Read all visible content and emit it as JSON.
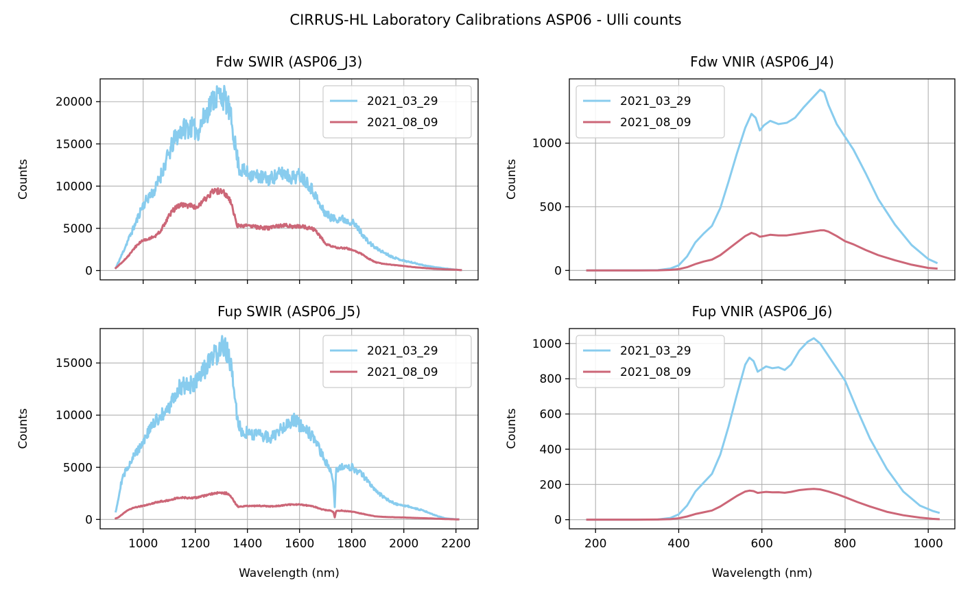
{
  "figure": {
    "title": "CIRRUS-HL Laboratory Calibrations ASP06 - Ulli counts",
    "background": "#ffffff"
  },
  "chart_data": [
    {
      "type": "line",
      "title": "Fdw SWIR (ASP06_J3)",
      "xlabel": "",
      "ylabel": "Counts",
      "xlim": [
        835,
        2285
      ],
      "ylim": [
        -1100,
        22700
      ],
      "xticks": [
        1000,
        1200,
        1400,
        1600,
        1800,
        2000,
        2200
      ],
      "xtick_labels_shown": false,
      "yticks": [
        0,
        5000,
        10000,
        15000,
        20000
      ],
      "grid": true,
      "legend": "top-right",
      "noise": {
        "seed": 11,
        "amp": 0.075
      },
      "series": [
        {
          "name": "2021_03_29",
          "color": "#88ccee",
          "x": [
            895,
            920,
            945,
            970,
            995,
            1020,
            1045,
            1070,
            1095,
            1120,
            1150,
            1180,
            1210,
            1240,
            1265,
            1290,
            1310,
            1325,
            1340,
            1350,
            1360,
            1370,
            1390,
            1420,
            1450,
            1480,
            1510,
            1540,
            1570,
            1600,
            1630,
            1660,
            1680,
            1700,
            1720,
            1740,
            1760,
            1780,
            1800,
            1830,
            1860,
            1890,
            1920,
            1950,
            1980,
            2010,
            2040,
            2080,
            2120,
            2160,
            2200,
            2220
          ],
          "y": [
            300,
            2000,
            3800,
            5500,
            7500,
            8700,
            9500,
            11500,
            13500,
            15500,
            16800,
            17000,
            16500,
            18500,
            20200,
            20800,
            20500,
            19500,
            17500,
            15500,
            13500,
            12000,
            11700,
            11300,
            11100,
            10800,
            11200,
            11600,
            11000,
            11300,
            10500,
            9000,
            7500,
            6800,
            6300,
            6100,
            6200,
            5900,
            5800,
            4800,
            3500,
            2700,
            2200,
            1700,
            1350,
            1100,
            900,
            600,
            400,
            250,
            100,
            50
          ]
        },
        {
          "name": "2021_08_09",
          "color": "#cc6677",
          "x": [
            895,
            920,
            945,
            970,
            995,
            1020,
            1045,
            1070,
            1095,
            1120,
            1150,
            1180,
            1210,
            1240,
            1265,
            1290,
            1310,
            1325,
            1340,
            1350,
            1360,
            1370,
            1390,
            1420,
            1450,
            1480,
            1510,
            1540,
            1570,
            1600,
            1630,
            1660,
            1680,
            1700,
            1720,
            1740,
            1760,
            1780,
            1800,
            1830,
            1860,
            1890,
            1920,
            1950,
            1980,
            2010,
            2040,
            2080,
            2120,
            2160,
            2200,
            2220
          ],
          "y": [
            300,
            1000,
            1800,
            2800,
            3500,
            3800,
            4000,
            4800,
            6300,
            7300,
            7800,
            7700,
            7500,
            8500,
            9300,
            9400,
            9200,
            8800,
            7800,
            6500,
            5400,
            5200,
            5300,
            5200,
            5100,
            5000,
            5200,
            5400,
            5200,
            5300,
            5100,
            4800,
            4000,
            3200,
            2900,
            2750,
            2700,
            2650,
            2500,
            2100,
            1500,
            1000,
            800,
            700,
            600,
            500,
            400,
            300,
            200,
            150,
            100,
            50
          ]
        }
      ]
    },
    {
      "type": "line",
      "title": "Fdw VNIR (ASP06_J4)",
      "xlabel": "",
      "ylabel": "Counts",
      "xlim": [
        137,
        1064
      ],
      "ylim": [
        -74,
        1505
      ],
      "xticks": [
        200,
        400,
        600,
        800,
        1000
      ],
      "xtick_labels_shown": false,
      "yticks": [
        0,
        500,
        1000
      ],
      "grid": true,
      "legend": "top-left",
      "noise": null,
      "series": [
        {
          "name": "2021_03_29",
          "color": "#88ccee",
          "x": [
            180,
            250,
            300,
            350,
            380,
            400,
            420,
            440,
            460,
            480,
            500,
            520,
            540,
            560,
            575,
            585,
            595,
            605,
            620,
            640,
            660,
            680,
            700,
            720,
            740,
            750,
            760,
            780,
            800,
            820,
            850,
            880,
            920,
            960,
            1000,
            1020
          ],
          "y": [
            0,
            0,
            0,
            2,
            15,
            40,
            110,
            220,
            290,
            350,
            490,
            700,
            920,
            1120,
            1230,
            1200,
            1100,
            1140,
            1175,
            1150,
            1160,
            1200,
            1280,
            1350,
            1420,
            1400,
            1300,
            1150,
            1050,
            950,
            760,
            560,
            360,
            200,
            90,
            60
          ]
        },
        {
          "name": "2021_08_09",
          "color": "#cc6677",
          "x": [
            180,
            250,
            300,
            350,
            380,
            400,
            420,
            440,
            460,
            480,
            500,
            520,
            540,
            560,
            575,
            585,
            595,
            605,
            620,
            640,
            660,
            680,
            700,
            720,
            740,
            750,
            760,
            780,
            800,
            820,
            850,
            880,
            920,
            960,
            1000,
            1020
          ],
          "y": [
            0,
            0,
            0,
            1,
            4,
            10,
            25,
            50,
            70,
            85,
            120,
            170,
            220,
            270,
            295,
            285,
            265,
            270,
            280,
            275,
            275,
            285,
            295,
            305,
            315,
            315,
            305,
            270,
            230,
            205,
            160,
            120,
            80,
            45,
            20,
            15
          ]
        }
      ]
    },
    {
      "type": "line",
      "title": "Fup SWIR (ASP06_J5)",
      "xlabel": "Wavelength (nm)",
      "ylabel": "Counts",
      "xlim": [
        835,
        2285
      ],
      "ylim": [
        -900,
        18300
      ],
      "xticks": [
        1000,
        1200,
        1400,
        1600,
        1800,
        2000,
        2200
      ],
      "xtick_labels_shown": true,
      "yticks": [
        0,
        5000,
        10000,
        15000
      ],
      "grid": true,
      "legend": "top-right",
      "noise": {
        "seed": 29,
        "amp": 0.07
      },
      "series": [
        {
          "name": "2021_03_29",
          "color": "#88ccee",
          "x": [
            895,
            905,
            915,
            930,
            950,
            975,
            1000,
            1030,
            1060,
            1090,
            1120,
            1150,
            1180,
            1210,
            1240,
            1270,
            1300,
            1320,
            1335,
            1345,
            1355,
            1365,
            1380,
            1400,
            1430,
            1460,
            1490,
            1520,
            1550,
            1580,
            1610,
            1640,
            1660,
            1680,
            1700,
            1720,
            1730,
            1735,
            1740,
            1760,
            1780,
            1800,
            1830,
            1860,
            1890,
            1920,
            1950,
            1980,
            2010,
            2040,
            2080,
            2120,
            2160,
            2200,
            2210
          ],
          "y": [
            800,
            2000,
            3500,
            4500,
            5500,
            6500,
            7500,
            8800,
            9800,
            10200,
            11800,
            13000,
            12800,
            13200,
            14500,
            15500,
            16500,
            16200,
            15000,
            13000,
            11000,
            9000,
            8500,
            8300,
            8200,
            8000,
            7800,
            8500,
            9200,
            9500,
            8800,
            8200,
            7500,
            6500,
            5500,
            4800,
            3500,
            1200,
            4800,
            5000,
            4900,
            5000,
            4500,
            3800,
            2800,
            2200,
            1700,
            1400,
            1300,
            1100,
            800,
            400,
            100,
            20,
            10
          ]
        },
        {
          "name": "2021_08_09",
          "color": "#cc6677",
          "x": [
            895,
            905,
            915,
            930,
            950,
            975,
            1000,
            1030,
            1060,
            1090,
            1120,
            1150,
            1180,
            1210,
            1240,
            1270,
            1300,
            1320,
            1335,
            1345,
            1355,
            1365,
            1380,
            1400,
            1430,
            1460,
            1490,
            1520,
            1550,
            1580,
            1610,
            1640,
            1660,
            1680,
            1700,
            1720,
            1730,
            1735,
            1740,
            1760,
            1780,
            1800,
            1830,
            1860,
            1890,
            1920,
            1950,
            1980,
            2010,
            2040,
            2080,
            2120,
            2160,
            2200,
            2210
          ],
          "y": [
            100,
            200,
            400,
            700,
            1000,
            1200,
            1300,
            1500,
            1700,
            1800,
            2000,
            2100,
            2050,
            2100,
            2300,
            2500,
            2550,
            2500,
            2300,
            1900,
            1500,
            1200,
            1250,
            1300,
            1300,
            1300,
            1250,
            1300,
            1400,
            1450,
            1400,
            1300,
            1200,
            1000,
            900,
            850,
            700,
            200,
            800,
            850,
            800,
            750,
            600,
            450,
            300,
            250,
            220,
            200,
            180,
            150,
            120,
            80,
            40,
            10,
            5
          ]
        }
      ]
    },
    {
      "type": "line",
      "title": "Fup VNIR (ASP06_J6)",
      "xlabel": "Wavelength (nm)",
      "ylabel": "Counts",
      "xlim": [
        137,
        1064
      ],
      "ylim": [
        -52,
        1085
      ],
      "xticks": [
        200,
        400,
        600,
        800,
        1000
      ],
      "xtick_labels_shown": true,
      "yticks": [
        0,
        200,
        400,
        600,
        800,
        1000
      ],
      "grid": true,
      "legend": "top-left",
      "noise": null,
      "series": [
        {
          "name": "2021_03_29",
          "color": "#88ccee",
          "x": [
            180,
            250,
            300,
            350,
            380,
            400,
            420,
            440,
            460,
            480,
            500,
            520,
            540,
            560,
            570,
            580,
            590,
            600,
            610,
            625,
            640,
            655,
            670,
            690,
            710,
            725,
            740,
            760,
            780,
            800,
            830,
            860,
            900,
            940,
            980,
            1010,
            1025
          ],
          "y": [
            0,
            0,
            0,
            1,
            10,
            30,
            80,
            160,
            210,
            260,
            370,
            530,
            710,
            880,
            920,
            900,
            840,
            855,
            870,
            860,
            865,
            850,
            880,
            960,
            1010,
            1030,
            1000,
            930,
            860,
            790,
            620,
            460,
            290,
            160,
            80,
            50,
            40
          ]
        },
        {
          "name": "2021_08_09",
          "color": "#cc6677",
          "x": [
            180,
            250,
            300,
            350,
            380,
            400,
            420,
            440,
            460,
            480,
            500,
            520,
            540,
            560,
            570,
            580,
            590,
            600,
            610,
            625,
            640,
            655,
            670,
            690,
            710,
            725,
            740,
            760,
            780,
            800,
            830,
            860,
            900,
            940,
            980,
            1010,
            1025
          ],
          "y": [
            0,
            0,
            0,
            1,
            3,
            8,
            18,
            32,
            42,
            52,
            75,
            105,
            135,
            160,
            165,
            162,
            152,
            155,
            158,
            155,
            156,
            153,
            158,
            168,
            173,
            175,
            172,
            160,
            145,
            128,
            100,
            75,
            45,
            25,
            12,
            5,
            3
          ]
        }
      ]
    }
  ]
}
